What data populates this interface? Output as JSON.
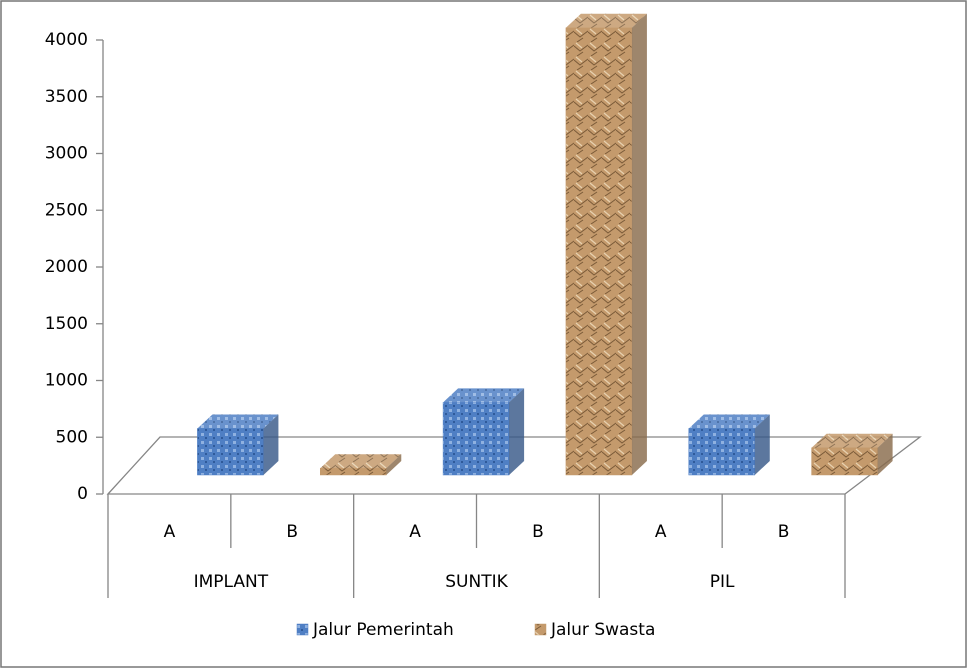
{
  "chart_data": {
    "type": "bar3d",
    "categories": [
      "A",
      "B",
      "A",
      "B",
      "A",
      "B"
    ],
    "groups": [
      "IMPLANT",
      "SUNTIK",
      "PIL"
    ],
    "series": [
      {
        "name": "Jalur Pemerintah",
        "color": "#4f7fc4",
        "values": [
          410,
          null,
          640,
          null,
          410,
          null
        ]
      },
      {
        "name": "Jalur Swasta",
        "color": "#c49a6c",
        "values": [
          null,
          60,
          null,
          3940,
          null,
          240
        ]
      }
    ],
    "ylim": [
      0,
      4000
    ],
    "yticks": [
      0,
      500,
      1000,
      1500,
      2000,
      2500,
      3000,
      3500,
      4000
    ],
    "legend": "bottom"
  }
}
